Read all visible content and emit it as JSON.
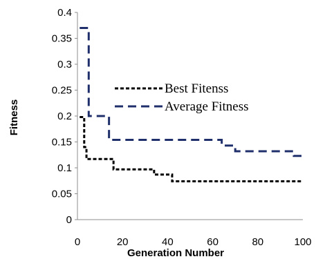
{
  "chart_data": {
    "type": "line",
    "xlabel": "Generation Number",
    "ylabel": "Fitness",
    "xlim": [
      0,
      100
    ],
    "ylim": [
      0,
      0.4
    ],
    "x_ticks": [
      "0",
      "20",
      "40",
      "60",
      "80",
      "100"
    ],
    "y_ticks": [
      "0",
      "0.05",
      "0.1",
      "0.15",
      "0.2",
      "0.25",
      "0.3",
      "0.35",
      "0.4"
    ],
    "grid": false,
    "legend_position": "center",
    "series": [
      {
        "name": "Best Fitenss",
        "color": "#000000",
        "line_style": "short-dash",
        "x": [
          1,
          2,
          3,
          4,
          5,
          6,
          7,
          8,
          9,
          10,
          11,
          12,
          13,
          14,
          15,
          16,
          17,
          18,
          19,
          20,
          21,
          22,
          23,
          24,
          25,
          26,
          27,
          28,
          29,
          30,
          31,
          32,
          33,
          34,
          35,
          36,
          37,
          38,
          39,
          40,
          41,
          42,
          43,
          44,
          45,
          46,
          47,
          48,
          49,
          50,
          51,
          52,
          53,
          54,
          55,
          56,
          57,
          58,
          59,
          60,
          61,
          62,
          63,
          64,
          65,
          66,
          67,
          68,
          69,
          70,
          71,
          72,
          73,
          74,
          75,
          76,
          77,
          78,
          79,
          80,
          81,
          82,
          83,
          84,
          85,
          86,
          87,
          88,
          89,
          90,
          91,
          92,
          93,
          94,
          95,
          96,
          97,
          98,
          99,
          100
        ],
        "y": [
          0.198,
          0.198,
          0.14,
          0.117,
          0.117,
          0.117,
          0.117,
          0.117,
          0.117,
          0.117,
          0.117,
          0.117,
          0.117,
          0.117,
          0.117,
          0.097,
          0.097,
          0.097,
          0.097,
          0.097,
          0.097,
          0.097,
          0.097,
          0.097,
          0.097,
          0.097,
          0.097,
          0.097,
          0.097,
          0.097,
          0.097,
          0.097,
          0.097,
          0.087,
          0.087,
          0.087,
          0.087,
          0.087,
          0.087,
          0.087,
          0.087,
          0.074,
          0.074,
          0.074,
          0.074,
          0.074,
          0.074,
          0.074,
          0.074,
          0.074,
          0.074,
          0.074,
          0.074,
          0.074,
          0.074,
          0.074,
          0.074,
          0.074,
          0.074,
          0.074,
          0.074,
          0.074,
          0.074,
          0.074,
          0.074,
          0.074,
          0.074,
          0.074,
          0.074,
          0.074,
          0.074,
          0.074,
          0.074,
          0.074,
          0.074,
          0.074,
          0.074,
          0.074,
          0.074,
          0.074,
          0.074,
          0.074,
          0.074,
          0.074,
          0.074,
          0.074,
          0.074,
          0.074,
          0.074,
          0.074,
          0.074,
          0.074,
          0.074,
          0.074,
          0.074,
          0.074,
          0.074,
          0.074,
          0.074,
          0.074
        ]
      },
      {
        "name": "Average Fitness",
        "color": "#1f2f6b",
        "line_style": "long-dash",
        "x": [
          1,
          2,
          3,
          4,
          5,
          6,
          7,
          8,
          9,
          10,
          11,
          12,
          13,
          14,
          15,
          16,
          17,
          18,
          19,
          20,
          21,
          22,
          23,
          24,
          25,
          26,
          27,
          28,
          29,
          30,
          31,
          32,
          33,
          34,
          35,
          36,
          37,
          38,
          39,
          40,
          41,
          42,
          43,
          44,
          45,
          46,
          47,
          48,
          49,
          50,
          51,
          52,
          53,
          54,
          55,
          56,
          57,
          58,
          59,
          60,
          61,
          62,
          63,
          64,
          65,
          66,
          67,
          68,
          69,
          70,
          71,
          72,
          73,
          74,
          75,
          76,
          77,
          78,
          79,
          80,
          81,
          82,
          83,
          84,
          85,
          86,
          87,
          88,
          89,
          90,
          91,
          92,
          93,
          94,
          95,
          96,
          97,
          98,
          99,
          100
        ],
        "y": [
          0.37,
          0.37,
          0.37,
          0.37,
          0.2,
          0.2,
          0.2,
          0.2,
          0.2,
          0.2,
          0.2,
          0.2,
          0.2,
          0.154,
          0.154,
          0.154,
          0.154,
          0.154,
          0.154,
          0.154,
          0.154,
          0.154,
          0.154,
          0.154,
          0.154,
          0.154,
          0.154,
          0.154,
          0.154,
          0.154,
          0.154,
          0.154,
          0.154,
          0.154,
          0.154,
          0.154,
          0.154,
          0.154,
          0.154,
          0.154,
          0.154,
          0.154,
          0.154,
          0.154,
          0.154,
          0.154,
          0.154,
          0.154,
          0.154,
          0.154,
          0.154,
          0.154,
          0.154,
          0.154,
          0.154,
          0.154,
          0.154,
          0.154,
          0.154,
          0.154,
          0.154,
          0.154,
          0.154,
          0.143,
          0.143,
          0.143,
          0.143,
          0.143,
          0.143,
          0.132,
          0.132,
          0.132,
          0.132,
          0.132,
          0.132,
          0.132,
          0.132,
          0.132,
          0.132,
          0.132,
          0.132,
          0.132,
          0.132,
          0.132,
          0.132,
          0.132,
          0.132,
          0.132,
          0.132,
          0.132,
          0.132,
          0.132,
          0.132,
          0.132,
          0.132,
          0.123,
          0.123,
          0.123,
          0.123,
          0.123
        ]
      }
    ]
  }
}
